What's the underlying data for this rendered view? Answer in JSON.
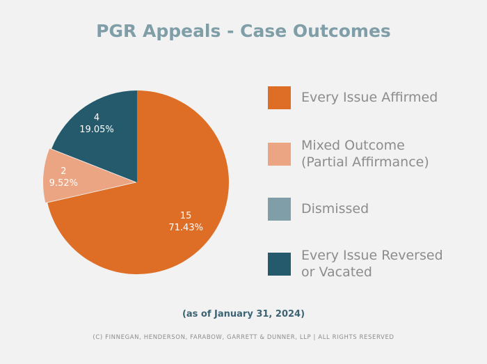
{
  "chart_data": {
    "type": "pie",
    "title": "PGR Appeals - Case Outcomes",
    "legend_position": "right",
    "slices": [
      {
        "name": "Every Issue Affirmed",
        "value": 15,
        "percent_label": "71.43%",
        "color": "#de6e26"
      },
      {
        "name": "Mixed Outcome (Partial Affirmance)",
        "value": 2,
        "percent_label": "9.52%",
        "color": "#eca583"
      },
      {
        "name": "Dismissed",
        "value": 0,
        "percent_label": "",
        "color": "#7f9ea8"
      },
      {
        "name": "Every Issue Reversed or Vacated",
        "value": 4,
        "percent_label": "19.05%",
        "color": "#245a6b"
      }
    ],
    "legend": [
      {
        "line1": "Every Issue Affirmed",
        "line2": ""
      },
      {
        "line1": "Mixed Outcome",
        "line2": "(Partial Affirmance)"
      },
      {
        "line1": "Dismissed",
        "line2": ""
      },
      {
        "line1": "Every Issue Reversed",
        "line2": "or Vacated"
      }
    ]
  },
  "note": "(as of January 31, 2024)",
  "copyright": "(C) FINNEGAN, HENDERSON, FARABOW, GARRETT & DUNNER, LLP | ALL RIGHTS RESERVED"
}
